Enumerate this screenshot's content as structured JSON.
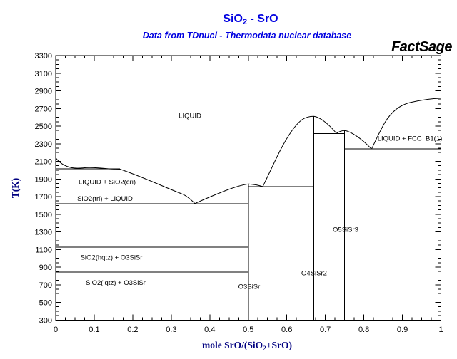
{
  "header": {
    "title_prefix": "SiO",
    "title_sub": "2",
    "title_suffix": " - SrO",
    "subtitle": "Data from TDnucl - Thermodata nuclear database",
    "logo_text": "FactSage"
  },
  "colors": {
    "title_blue": "#0000e0",
    "axis_navy": "#000080",
    "line_black": "#000000",
    "background": "#ffffff"
  },
  "axes": {
    "y_label": "T(K)",
    "x_label_prefix": "mole SrO/(SiO",
    "x_label_sub": "2",
    "x_label_suffix": "+SrO)",
    "x_tick_labels": [
      "0",
      "0.1",
      "0.2",
      "0.3",
      "0.4",
      "0.5",
      "0.6",
      "0.7",
      "0.8",
      "0.9",
      "1"
    ],
    "x_tick_values": [
      0,
      0.1,
      0.2,
      0.3,
      0.4,
      0.5,
      0.6,
      0.7,
      0.8,
      0.9,
      1
    ],
    "x_minor_step": 0.025,
    "y_tick_labels": [
      "300",
      "500",
      "700",
      "900",
      "1100",
      "1300",
      "1500",
      "1700",
      "1900",
      "2100",
      "2300",
      "2500",
      "2700",
      "2900",
      "3100",
      "3300"
    ],
    "y_tick_values": [
      300,
      500,
      700,
      900,
      1100,
      1300,
      1500,
      1700,
      1900,
      2100,
      2300,
      2500,
      2700,
      2900,
      3100,
      3300
    ],
    "y_minor_step": 50
  },
  "regions": [
    {
      "label": "LIQUID",
      "x": 0.3485,
      "T": 2621
    },
    {
      "label": "LIQUID + SiO2(cri)",
      "x": 0.1335,
      "T": 1870
    },
    {
      "label": "SiO2(tri) + LIQUID",
      "x": 0.1279,
      "T": 1680
    },
    {
      "label": "SiO2(hqtz) + O3SiSr",
      "x": 0.1446,
      "T": 1014
    },
    {
      "label": "SiO2(lqtz) + O3SiSr",
      "x": 0.1557,
      "T": 727
    },
    {
      "label": "O3SiSr",
      "x": 0.5023,
      "T": 682
    },
    {
      "label": "O4SiSr2",
      "x": 0.671,
      "T": 836
    },
    {
      "label": "O5SiSr3",
      "x": 0.7525,
      "T": 1329
    },
    {
      "label": "LIQUID + FCC_B1(1)",
      "x": 0.9194,
      "T": 2363
    }
  ],
  "chart_data": {
    "type": "line",
    "subtype": "binary-phase-diagram",
    "title": "SiO2 - SrO",
    "subtitle": "Data from TDnucl - Thermodata nuclear database",
    "xlabel": "mole SrO/(SiO2+SrO)",
    "ylabel": "T(K)",
    "xlim": [
      0,
      1
    ],
    "ylim": [
      300,
      3300
    ],
    "grid": false,
    "x_major_tick_step": 0.1,
    "x_minor_tick_step": 0.025,
    "y_major_tick_step": 200,
    "y_minor_tick_step": 50,
    "series": [
      {
        "name": "SiO2(cri) liquidus / L1-L2 gap",
        "points": [
          [
            0,
            2140
          ],
          [
            0.02,
            2070
          ],
          [
            0.04,
            2020
          ],
          [
            0.08,
            2028
          ],
          [
            0.12,
            2022
          ],
          [
            0.167,
            2015
          ],
          [
            0.24,
            1890
          ],
          [
            0.282,
            1820
          ],
          [
            0.328,
            1730
          ],
          [
            0.361,
            1622
          ]
        ]
      },
      {
        "name": "O3SiSr liquidus",
        "points": [
          [
            0.361,
            1622
          ],
          [
            0.43,
            1760
          ],
          [
            0.5,
            1850
          ],
          [
            0.537,
            1812
          ]
        ]
      },
      {
        "name": "O4SiSr2 liquidus",
        "points": [
          [
            0.537,
            1812
          ],
          [
            0.59,
            2300
          ],
          [
            0.62,
            2490
          ],
          [
            0.67,
            2610
          ],
          [
            0.729,
            2418
          ]
        ]
      },
      {
        "name": "O5SiSr3 liquidus",
        "points": [
          [
            0.729,
            2418
          ],
          [
            0.75,
            2450
          ],
          [
            0.82,
            2240
          ]
        ]
      },
      {
        "name": "FCC_B1 (SrO) liquidus",
        "points": [
          [
            0.82,
            2240
          ],
          [
            0.845,
            2450
          ],
          [
            0.869,
            2610
          ],
          [
            0.918,
            2760
          ],
          [
            0.968,
            2813
          ],
          [
            1.0,
            2815
          ]
        ]
      }
    ],
    "isotherms": [
      {
        "T": 2015,
        "x_from": 0,
        "x_to": 0.167
      },
      {
        "T": 1730,
        "x_from": 0,
        "x_to": 0.328
      },
      {
        "T": 1622,
        "x_from": 0,
        "x_to": 0.5
      },
      {
        "T": 1125,
        "x_from": 0,
        "x_to": 0.5
      },
      {
        "T": 845,
        "x_from": 0,
        "x_to": 0.5
      },
      {
        "T": 1812,
        "x_from": 0.5,
        "x_to": 0.67
      },
      {
        "T": 2418,
        "x_from": 0.67,
        "x_to": 0.75
      },
      {
        "T": 2240,
        "x_from": 0.75,
        "x_to": 1.0
      }
    ],
    "compound_lines": [
      {
        "x": 0.5,
        "label": "O3SiSr",
        "T_top": 1850
      },
      {
        "x": 0.67,
        "label": "O4SiSr2",
        "T_top": 2610
      },
      {
        "x": 0.75,
        "label": "O5SiSr3",
        "T_top": 2450
      }
    ],
    "invariant_points": [
      {
        "x": 0.361,
        "T": 1622,
        "kind": "eutectic"
      },
      {
        "x": 0.537,
        "T": 1812,
        "kind": "eutectic"
      },
      {
        "x": 0.729,
        "T": 2418,
        "kind": "eutectic"
      },
      {
        "x": 0.82,
        "T": 2240,
        "kind": "eutectic"
      },
      {
        "x": 0.167,
        "T": 2015,
        "kind": "monotectic"
      }
    ]
  }
}
